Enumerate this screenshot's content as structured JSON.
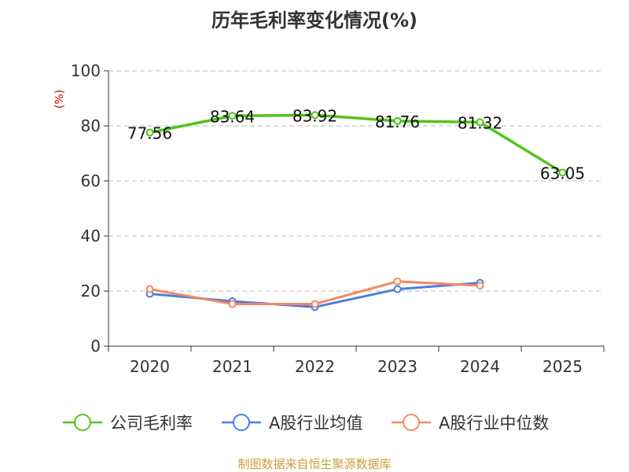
{
  "chart_data": {
    "type": "line",
    "title": "历年毛利率变化情况(%)",
    "ylabel": "(%)",
    "xlabel": "",
    "categories": [
      "2020",
      "2021",
      "2022",
      "2023",
      "2024",
      "2025"
    ],
    "ylim": [
      0,
      100
    ],
    "yticks": [
      0,
      20,
      40,
      60,
      80,
      100
    ],
    "grid": true,
    "legend_position": "bottom",
    "series": [
      {
        "name": "公司毛利率",
        "color": "#52c41a",
        "values": [
          77.56,
          83.64,
          83.92,
          81.76,
          81.32,
          63.05
        ],
        "labels": [
          "77.56",
          "83.64",
          "83.92",
          "81.76",
          "81.32",
          "63.05"
        ]
      },
      {
        "name": "A股行业均值",
        "color": "#4a7fe0",
        "values": [
          19.0,
          16.3,
          14.2,
          20.7,
          23.0,
          null
        ]
      },
      {
        "name": "A股行业中位数",
        "color": "#f4895f",
        "values": [
          20.7,
          15.3,
          15.3,
          23.5,
          22.0,
          null
        ]
      }
    ]
  },
  "source": "制图数据来自恒生聚源数据库"
}
